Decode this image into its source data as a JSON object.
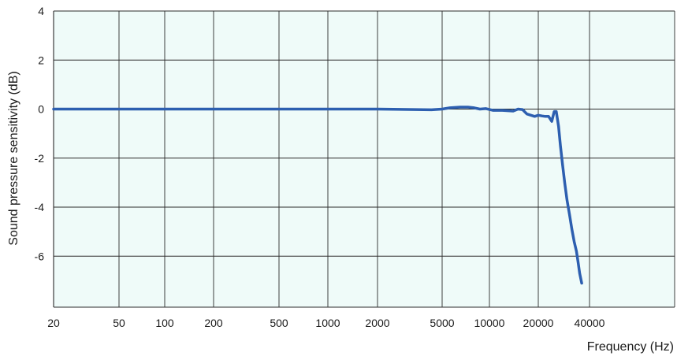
{
  "chart_data": {
    "type": "line",
    "xlabel": "Frequency (Hz)",
    "ylabel": "Sound pressure sensitivity (dB)",
    "x_scale": "log",
    "ylim": [
      -7.8,
      4
    ],
    "y_ticks": [
      4,
      2,
      0,
      -2,
      -4,
      -6
    ],
    "x_ticks": [
      20,
      50,
      100,
      200,
      500,
      1000,
      2000,
      5000,
      10000,
      20000,
      40000
    ],
    "grid": true,
    "colors": {
      "plot_background": "#effbf9",
      "grid": "#2b2b2b",
      "line": "#2d5fb0"
    },
    "series": [
      {
        "x": [
          20,
          50,
          100,
          200,
          500,
          1000,
          2000,
          4300,
          5000,
          5600,
          6500,
          7300,
          8000,
          8700,
          9500,
          10500,
          12000,
          14000,
          15000,
          16000,
          17000,
          18000,
          19000,
          20000,
          21000,
          22000,
          23000,
          24000,
          24800,
          25500,
          26300,
          27000,
          27800,
          28600,
          29500,
          30500,
          31500,
          32500,
          33500,
          34200,
          35000,
          36000
        ],
        "values": [
          0.0,
          0.0,
          0.0,
          0.0,
          0.0,
          0.0,
          0.0,
          -0.03,
          0.0,
          0.05,
          0.08,
          0.08,
          0.05,
          0.0,
          0.02,
          -0.05,
          -0.05,
          -0.08,
          0.0,
          -0.02,
          -0.2,
          -0.25,
          -0.3,
          -0.25,
          -0.28,
          -0.3,
          -0.3,
          -0.5,
          -0.1,
          -0.1,
          -0.7,
          -1.5,
          -2.3,
          -3.0,
          -3.7,
          -4.3,
          -4.9,
          -5.4,
          -5.8,
          -6.2,
          -6.7,
          -7.1
        ]
      }
    ]
  }
}
